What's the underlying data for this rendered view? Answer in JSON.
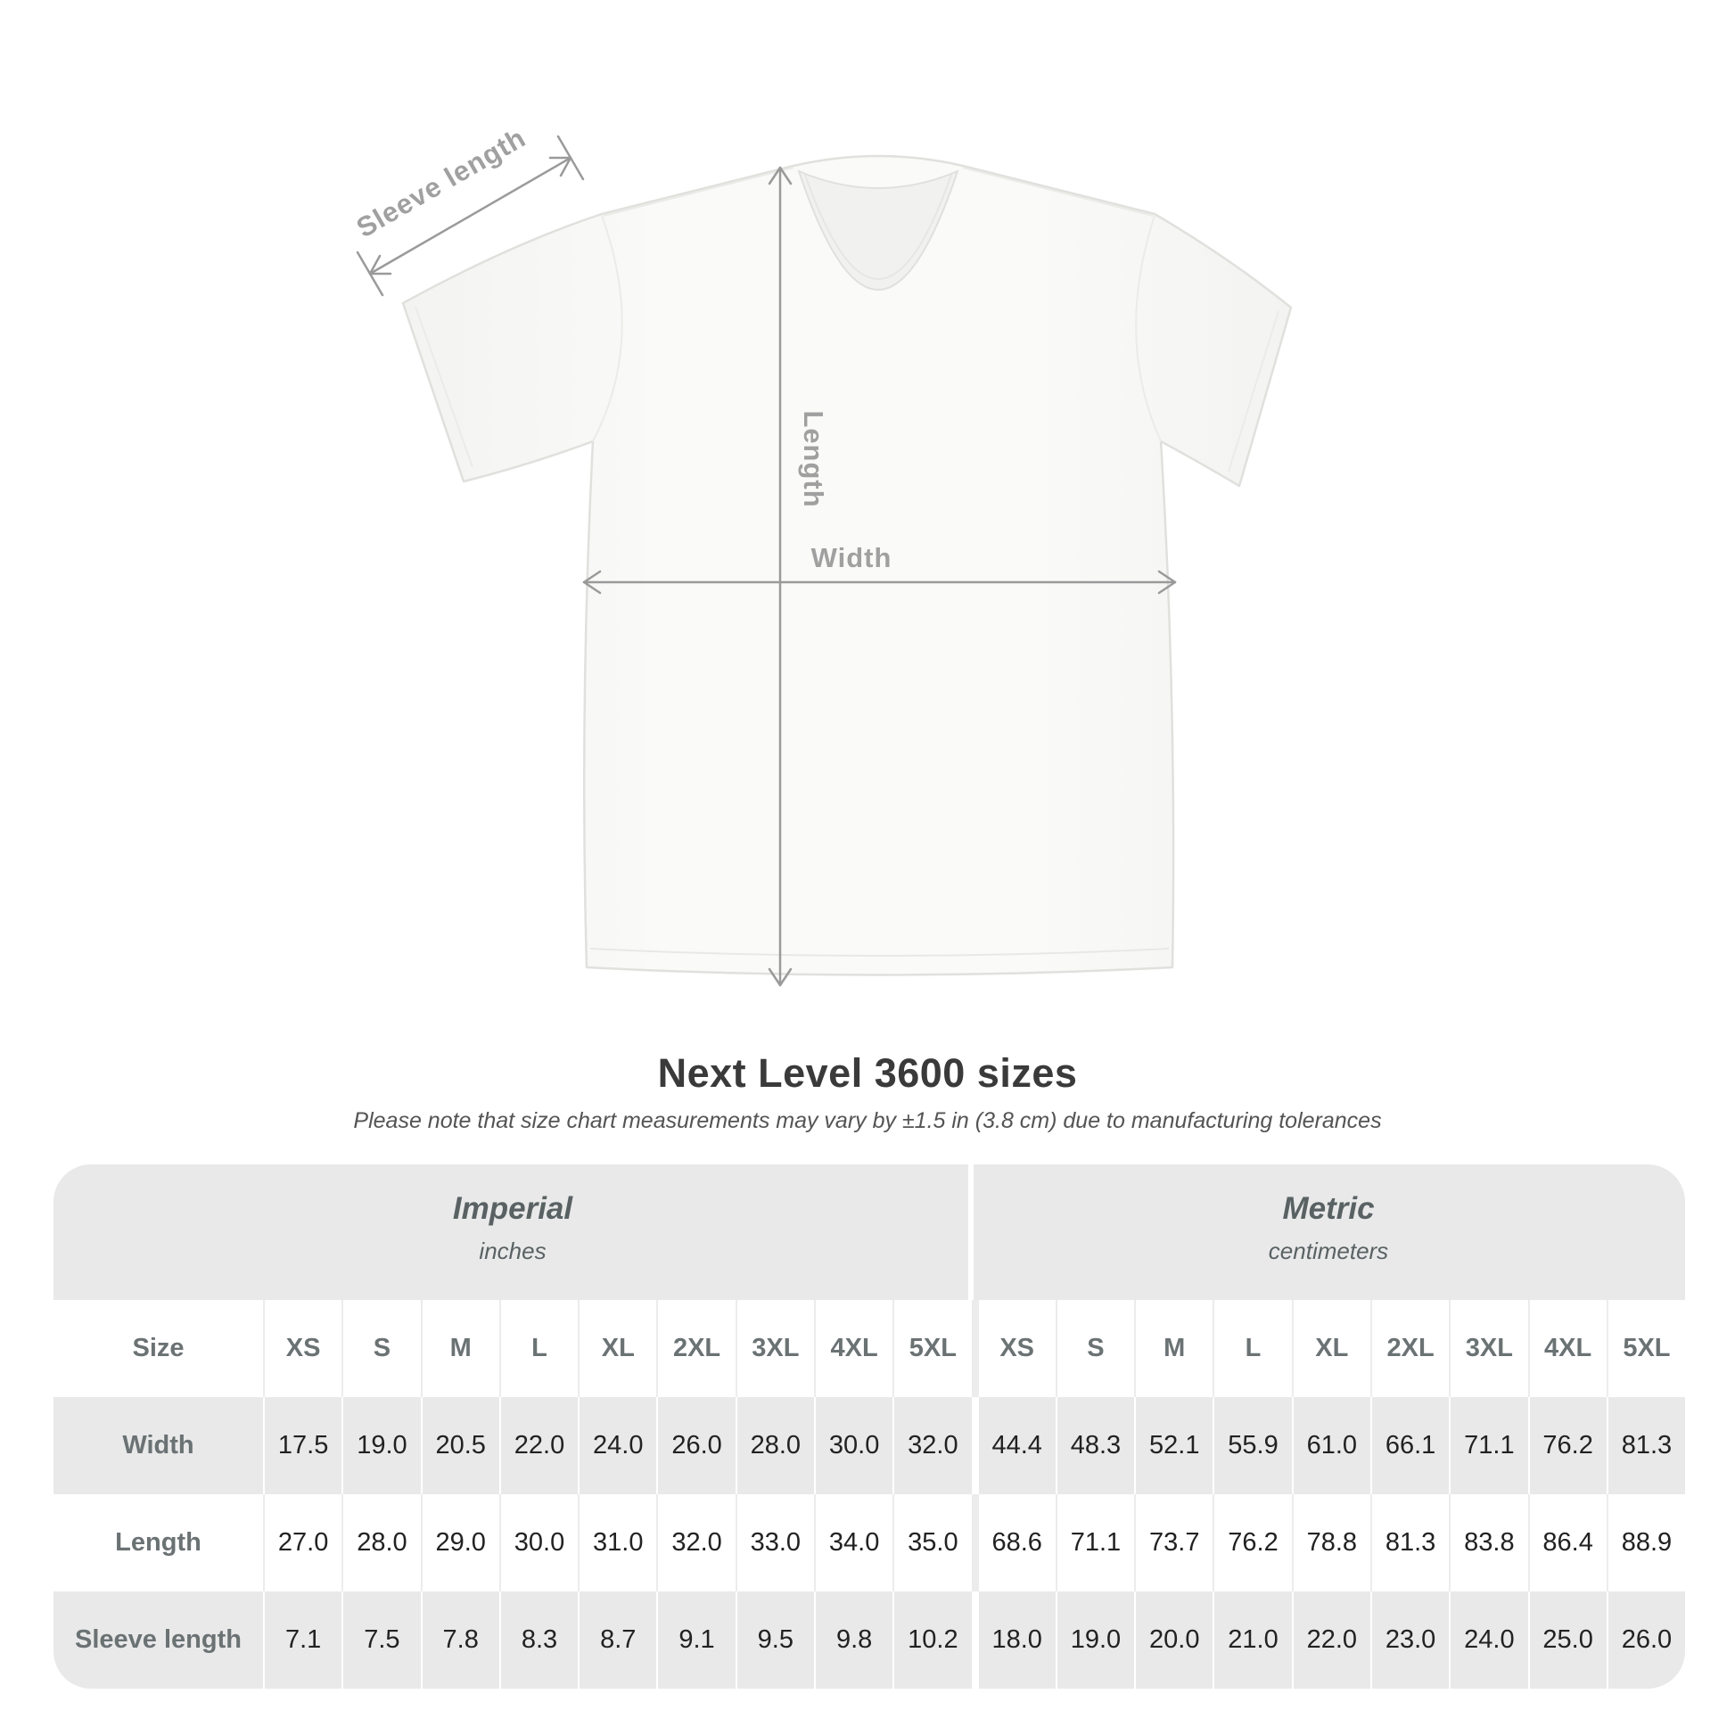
{
  "diagram": {
    "labels": {
      "sleeve_length": "Sleeve length",
      "length": "Length",
      "width": "Width"
    }
  },
  "heading": {
    "title": "Next Level 3600 sizes",
    "subtitle": "Please note that size chart measurements may vary by ±1.5 in (3.8 cm) due to manufacturing tolerances"
  },
  "table": {
    "corner_header": "Size",
    "groups": [
      {
        "label": "Imperial",
        "unit": "inches"
      },
      {
        "label": "Metric",
        "unit": "centimeters"
      }
    ],
    "sizes": [
      "XS",
      "S",
      "M",
      "L",
      "XL",
      "2XL",
      "3XL",
      "4XL",
      "5XL"
    ],
    "rows": [
      {
        "label": "Width",
        "imperial": [
          "17.5",
          "19.0",
          "20.5",
          "22.0",
          "24.0",
          "26.0",
          "28.0",
          "30.0",
          "32.0"
        ],
        "metric": [
          "44.4",
          "48.3",
          "52.1",
          "55.9",
          "61.0",
          "66.1",
          "71.1",
          "76.2",
          "81.3"
        ]
      },
      {
        "label": "Length",
        "imperial": [
          "27.0",
          "28.0",
          "29.0",
          "30.0",
          "31.0",
          "32.0",
          "33.0",
          "34.0",
          "35.0"
        ],
        "metric": [
          "68.6",
          "71.1",
          "73.7",
          "76.2",
          "78.8",
          "81.3",
          "83.8",
          "86.4",
          "88.9"
        ]
      },
      {
        "label": "Sleeve length",
        "imperial": [
          "7.1",
          "7.5",
          "7.8",
          "8.3",
          "8.7",
          "9.1",
          "9.5",
          "9.8",
          "10.2"
        ],
        "metric": [
          "18.0",
          "19.0",
          "20.0",
          "21.0",
          "22.0",
          "23.0",
          "24.0",
          "25.0",
          "26.0"
        ]
      }
    ]
  },
  "colors": {
    "annotation_line": "#9a9a9a",
    "annotation_text": "#a0a0a0",
    "title_text": "#3a3a3a",
    "table_background": "#e9e9e9",
    "table_header_text": "#6b7274",
    "table_value_text": "#222222"
  }
}
